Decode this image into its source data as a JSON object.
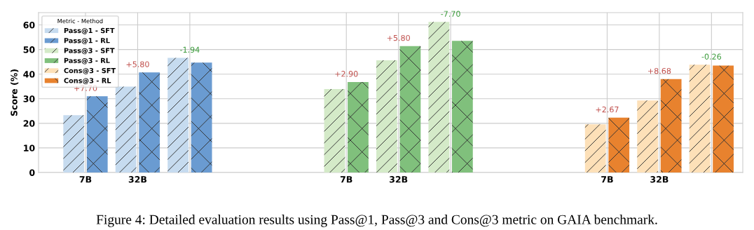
{
  "chart_data": {
    "type": "bar",
    "ylabel": "Score (%)",
    "categories": [
      "7B",
      "32B",
      null,
      null,
      null,
      "7B",
      "32B",
      null,
      null,
      null,
      "7B",
      "32B",
      null
    ],
    "series": [
      {
        "name": "Pass@1 - SFT",
        "color": "#c6dbef",
        "values": [
          23.3,
          34.9,
          46.6,
          null,
          null,
          null,
          null,
          null,
          null,
          null,
          null,
          null,
          null
        ]
      },
      {
        "name": "Pass@1 - RL",
        "color": "#6a9bd1",
        "values": [
          31.0,
          40.7,
          44.7,
          null,
          null,
          null,
          null,
          null,
          null,
          null,
          null,
          null,
          null
        ]
      },
      {
        "name": "Pass@3 - SFT",
        "color": "#d4eac8",
        "values": [
          null,
          null,
          null,
          null,
          null,
          33.9,
          45.6,
          61.2,
          null,
          null,
          null,
          null,
          null
        ]
      },
      {
        "name": "Pass@3 - RL",
        "color": "#80c07c",
        "values": [
          null,
          null,
          null,
          null,
          null,
          36.8,
          51.4,
          53.5,
          null,
          null,
          null,
          null,
          null
        ]
      },
      {
        "name": "Cons@3 - SFT",
        "color": "#fde0b8",
        "values": [
          null,
          null,
          null,
          null,
          null,
          null,
          null,
          null,
          null,
          null,
          19.6,
          29.3,
          43.8
        ]
      },
      {
        "name": "Cons@3 - RL",
        "color": "#e8822e",
        "values": [
          null,
          null,
          null,
          null,
          null,
          null,
          null,
          null,
          null,
          null,
          22.3,
          38.0,
          43.5
        ]
      }
    ],
    "ylim": [
      0,
      65
    ],
    "yticks": [
      0,
      10,
      20,
      30,
      40,
      50,
      60
    ],
    "grid": true,
    "legend": "top left",
    "legend_title": "Metric - Method",
    "annotations": [
      "+7.70",
      "+5.80",
      "-1.94",
      "+2.90",
      "+5.80",
      "-7.70",
      "+2.67",
      "+8.68",
      "-0.26",
      "Figure 4: Detailed evaluation results using Pass@1, Pass@3 and Cons@3 metric on GAIA benchmark."
    ]
  }
}
